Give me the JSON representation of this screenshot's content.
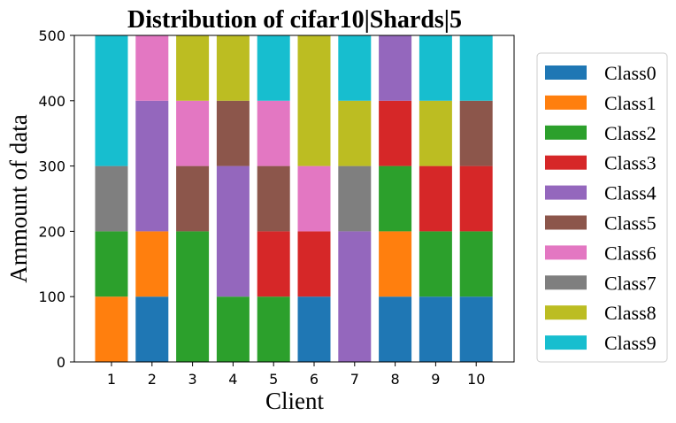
{
  "chart_data": {
    "type": "bar",
    "stacked": true,
    "title": "Distribution of cifar10|Shards|5",
    "xlabel": "Client",
    "ylabel": "Ammount of data",
    "ylim": [
      0,
      500
    ],
    "yticks": [
      "0",
      "100",
      "200",
      "300",
      "400",
      "500"
    ],
    "categories": [
      "1",
      "2",
      "3",
      "4",
      "5",
      "6",
      "7",
      "8",
      "9",
      "10"
    ],
    "legend_position": "right",
    "grid": false,
    "series": [
      {
        "name": "Class0",
        "color": "#1f77b4",
        "values": [
          0,
          100,
          0,
          0,
          0,
          100,
          0,
          100,
          100,
          100
        ]
      },
      {
        "name": "Class1",
        "color": "#ff7f0e",
        "values": [
          100,
          100,
          0,
          0,
          0,
          0,
          0,
          100,
          0,
          0
        ]
      },
      {
        "name": "Class2",
        "color": "#2ca02c",
        "values": [
          100,
          0,
          200,
          100,
          100,
          0,
          0,
          100,
          100,
          100
        ]
      },
      {
        "name": "Class3",
        "color": "#d62728",
        "values": [
          0,
          0,
          0,
          0,
          100,
          100,
          0,
          100,
          100,
          100
        ]
      },
      {
        "name": "Class4",
        "color": "#9467bd",
        "values": [
          0,
          200,
          0,
          200,
          0,
          0,
          200,
          100,
          0,
          0
        ]
      },
      {
        "name": "Class5",
        "color": "#8c564b",
        "values": [
          0,
          0,
          100,
          100,
          100,
          0,
          0,
          0,
          0,
          100
        ]
      },
      {
        "name": "Class6",
        "color": "#e377c2",
        "values": [
          0,
          100,
          100,
          0,
          100,
          100,
          0,
          0,
          0,
          0
        ]
      },
      {
        "name": "Class7",
        "color": "#7f7f7f",
        "values": [
          100,
          0,
          0,
          0,
          0,
          0,
          100,
          0,
          0,
          0
        ]
      },
      {
        "name": "Class8",
        "color": "#bcbd22",
        "values": [
          0,
          0,
          100,
          100,
          0,
          200,
          100,
          0,
          100,
          0
        ]
      },
      {
        "name": "Class9",
        "color": "#17becf",
        "values": [
          200,
          0,
          0,
          0,
          100,
          0,
          100,
          0,
          100,
          100
        ]
      }
    ]
  }
}
